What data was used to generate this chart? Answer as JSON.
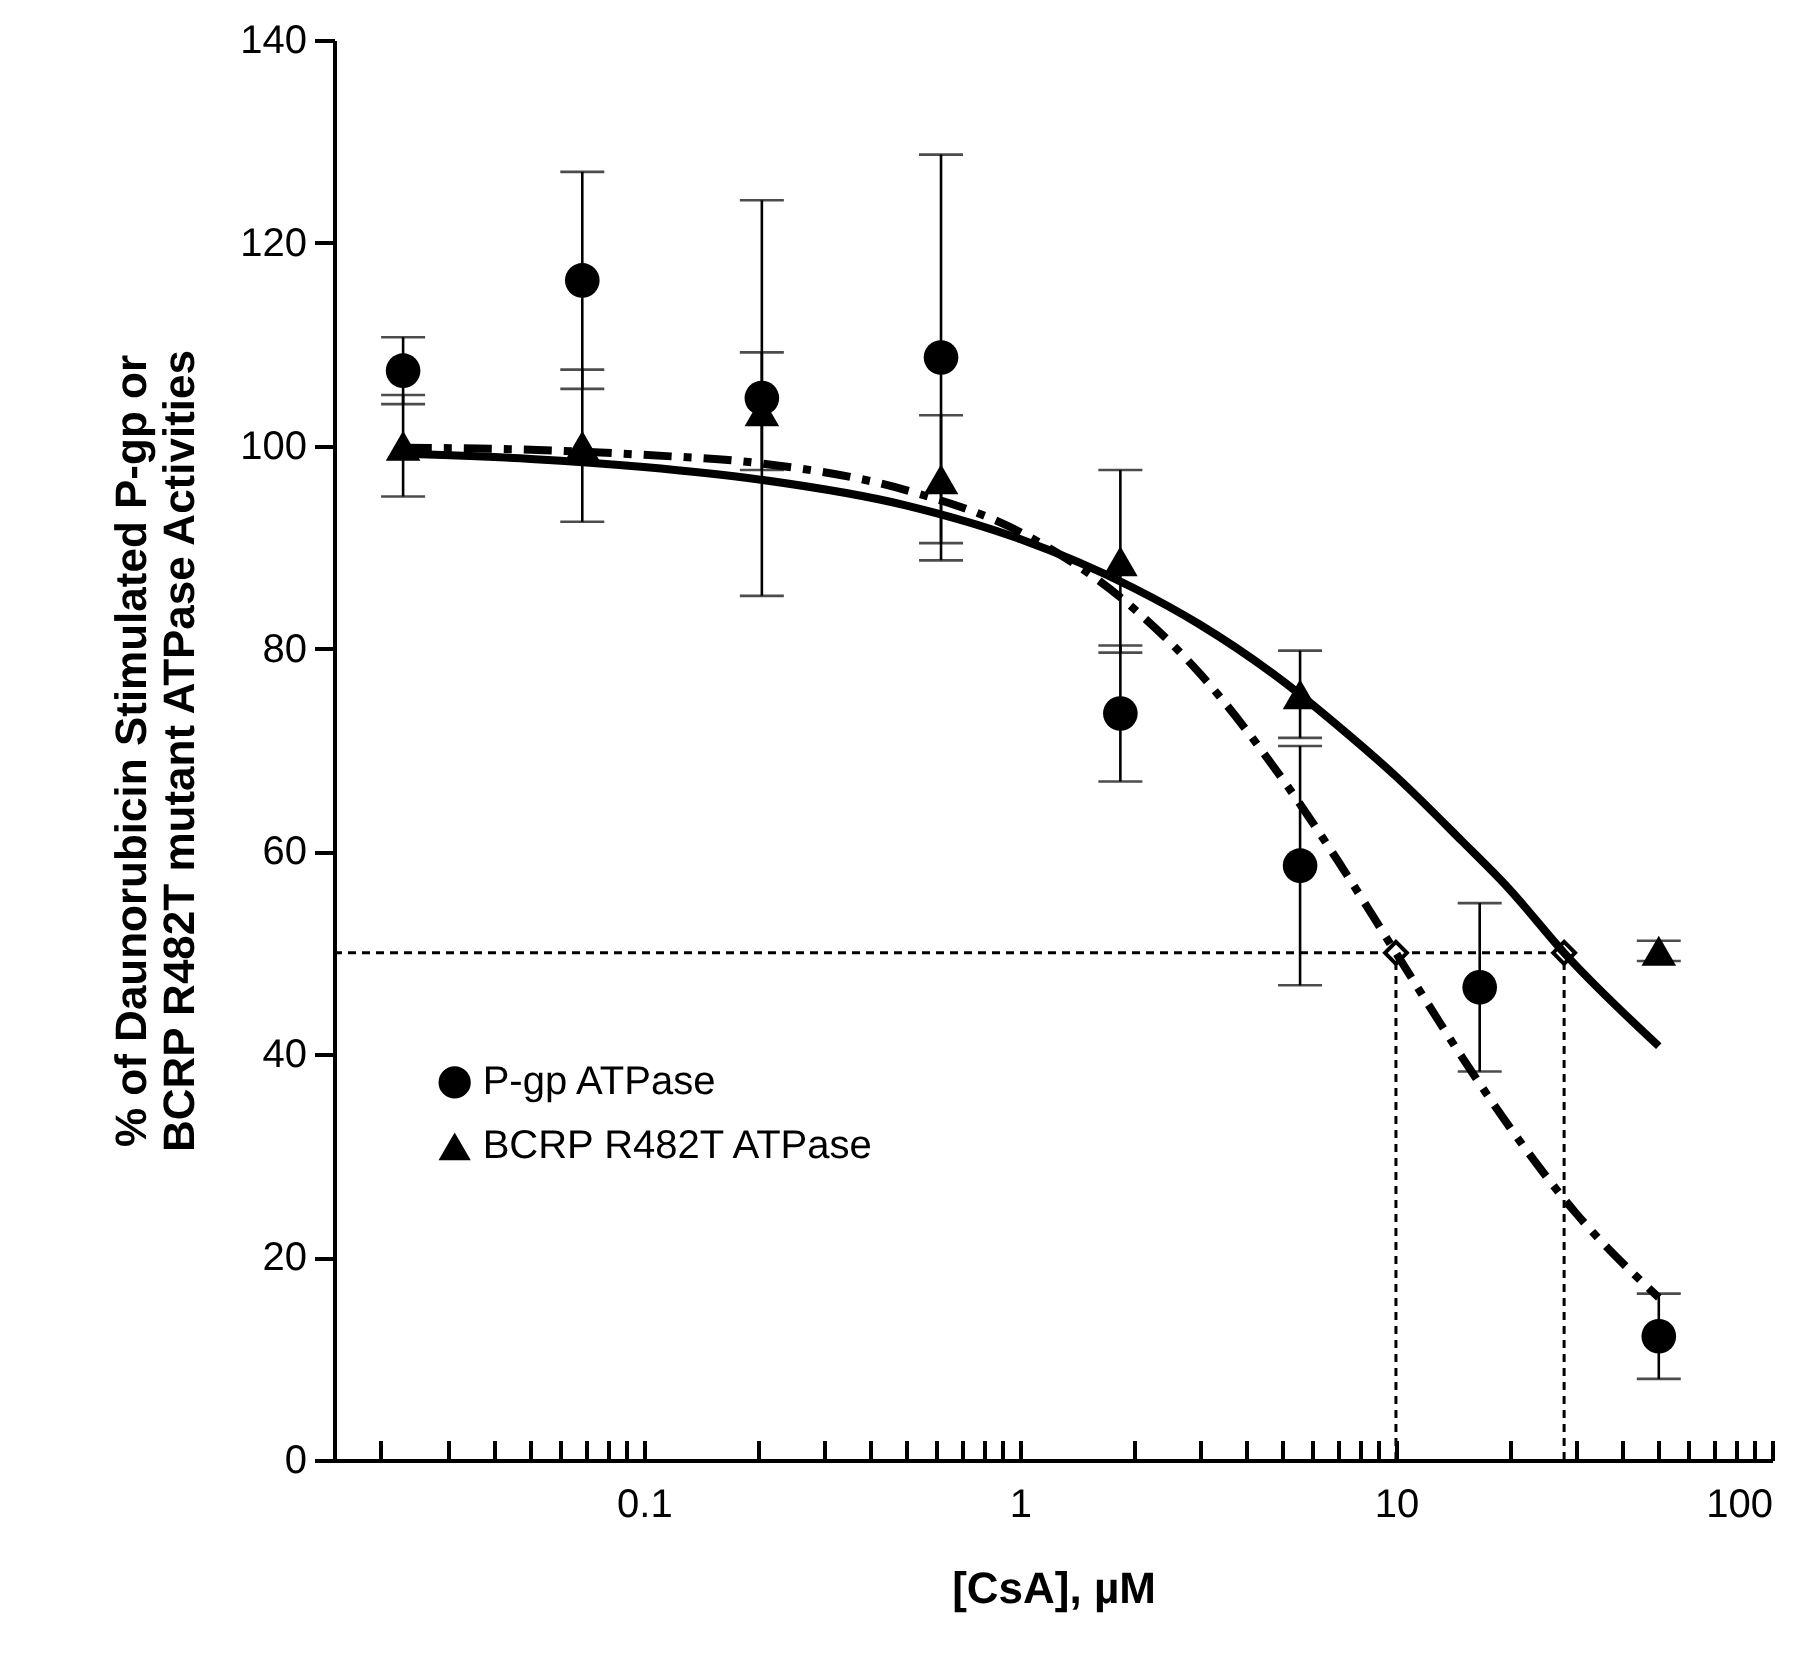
{
  "chart_data": {
    "type": "scatter",
    "xlabel": "[CsA], µM",
    "ylabel": "% of Daunorubicin Stimulated P-gp or\nBCRP R482T mutant ATPase Activities",
    "log": "x",
    "xlim": [
      0.015,
      100
    ],
    "xticks": [
      {
        "value": 0.02,
        "label": null
      },
      {
        "value": 0.03,
        "label": null
      },
      {
        "value": 0.04,
        "label": null
      },
      {
        "value": 0.05,
        "label": null
      },
      {
        "value": 0.06,
        "label": null
      },
      {
        "value": 0.07,
        "label": null
      },
      {
        "value": 0.08,
        "label": null
      },
      {
        "value": 0.09,
        "label": null
      },
      {
        "value": 0.1,
        "label": "0.1"
      },
      {
        "value": 0.2,
        "label": null
      },
      {
        "value": 0.3,
        "label": null
      },
      {
        "value": 0.4,
        "label": null
      },
      {
        "value": 0.5,
        "label": null
      },
      {
        "value": 0.6,
        "label": null
      },
      {
        "value": 0.7,
        "label": null
      },
      {
        "value": 0.8,
        "label": null
      },
      {
        "value": 0.9,
        "label": null
      },
      1,
      {
        "value": 2,
        "label": null
      },
      {
        "value": 3,
        "label": null
      },
      {
        "value": 4,
        "label": null
      },
      {
        "value": 5,
        "label": null
      },
      {
        "value": 6,
        "label": null
      },
      {
        "value": 7,
        "label": null
      },
      {
        "value": 8,
        "label": null
      },
      {
        "value": 9,
        "label": null
      },
      10,
      {
        "value": 20,
        "label": null
      },
      {
        "value": 30,
        "label": null
      },
      {
        "value": 40,
        "label": null
      },
      {
        "value": 50,
        "label": null
      },
      {
        "value": 60,
        "label": null
      },
      {
        "value": 70,
        "label": null
      },
      {
        "value": 80,
        "label": null
      },
      {
        "value": 90,
        "label": null
      },
      100
    ],
    "ylim": [
      0,
      140
    ],
    "yticks": [
      0,
      20,
      40,
      60,
      80,
      100,
      120,
      140
    ],
    "grid": false,
    "legend": "bottom left",
    "ref_lines": [
      {
        "axis": "y",
        "value": 50,
        "line_style": "dashed"
      },
      {
        "axis": "x",
        "value": 10,
        "line_style": "dashed"
      },
      {
        "axis": "x",
        "value": 28,
        "line_style": "dashed"
      }
    ],
    "series": [
      {
        "name": "P-gp ATPase",
        "marker": "circle",
        "color": "#000000",
        "x": [
          0.0229,
          0.0686,
          0.206,
          0.617,
          1.85,
          5.56,
          16.7,
          50
        ],
        "values": [
          107.4,
          116.3,
          104.7,
          108.7,
          73.6,
          58.6,
          46.6,
          12.2
        ],
        "errors": [
          3.3,
          10.7,
          19.5,
          20,
          6.7,
          11.8,
          8.3,
          4.2
        ]
      },
      {
        "name": "BCRP R482T ATPase",
        "marker": "triangle",
        "color": "#000000",
        "x": [
          0.0229,
          0.0686,
          0.206,
          0.617,
          1.85,
          5.56,
          16.7,
          50
        ],
        "values": [
          100,
          100,
          103.4,
          96.7,
          88.6,
          75.5,
          null,
          50.2
        ],
        "errors": [
          5,
          7.5,
          5.8,
          6.3,
          9,
          4.3,
          null,
          1
        ]
      },
      {
        "type": "line",
        "line_style": "dashed",
        "color": "#000000",
        "x": [
          0.023,
          0.05,
          0.1,
          0.2,
          0.5,
          1,
          2,
          3,
          5,
          7,
          10,
          15,
          20,
          30,
          50
        ],
        "values": [
          99.8,
          99.6,
          99.1,
          98.3,
          95.6,
          91.5,
          84.0,
          77.6,
          67.1,
          59.1,
          50,
          39.7,
          32.9,
          24.4,
          16.0
        ]
      },
      {
        "type": "line",
        "line_style": "solid",
        "color": "#000000",
        "x": [
          0.023,
          0.05,
          0.1,
          0.2,
          0.5,
          1,
          2,
          3,
          5,
          7,
          10,
          15,
          20,
          28,
          50
        ],
        "values": [
          99.2,
          98.7,
          97.9,
          96.7,
          94.1,
          90.8,
          86.0,
          82.4,
          76.8,
          72.4,
          67.4,
          61.0,
          56.3,
          50,
          40.8
        ]
      }
    ]
  }
}
